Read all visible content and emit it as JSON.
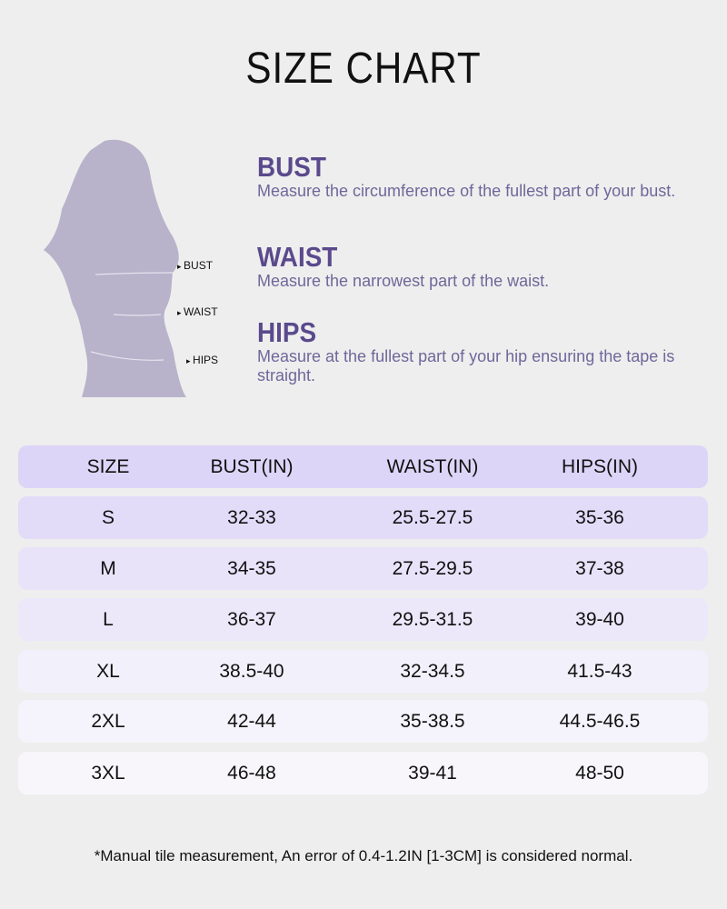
{
  "title": "SIZE CHART",
  "figure_labels": {
    "bust": "BUST",
    "waist": "WAIST",
    "hips": "HIPS"
  },
  "sections": [
    {
      "heading": "BUST",
      "text": "Measure the circumference of the fullest part of your bust."
    },
    {
      "heading": "WAIST",
      "text": "Measure the narrowest part of the waist."
    },
    {
      "heading": "HIPS",
      "text": "Measure at the fullest part of your hip ensuring the tape is straight."
    }
  ],
  "table": {
    "headers": [
      "SIZE",
      "BUST(IN)",
      "WAIST(IN)",
      "HIPS(IN)"
    ],
    "rows": [
      [
        "S",
        "32-33",
        "25.5-27.5",
        "35-36"
      ],
      [
        "M",
        "34-35",
        "27.5-29.5",
        "37-38"
      ],
      [
        "L",
        "36-37",
        "29.5-31.5",
        "39-40"
      ],
      [
        "XL",
        "38.5-40",
        "32-34.5",
        "41.5-43"
      ],
      [
        "2XL",
        "42-44",
        "35-38.5",
        "44.5-46.5"
      ],
      [
        "3XL",
        "46-48",
        "39-41",
        "48-50"
      ]
    ]
  },
  "note": "*Manual tile measurement, An error of 0.4-1.2IN [1-3CM] is considered normal.",
  "colors": {
    "background": "#eeeeee",
    "header_row": "#dcd5f7",
    "heading": "#5a4a8c",
    "silhouette": "#b8b2ca"
  }
}
